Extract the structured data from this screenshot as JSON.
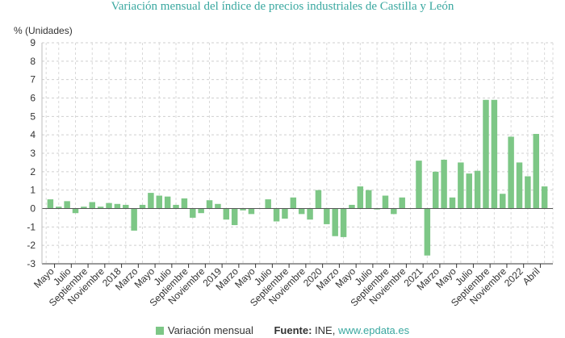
{
  "chart_data": {
    "type": "bar",
    "title": "Variación mensual del índice de precios industriales de Castilla y León",
    "ylabel": "% (Unidades)",
    "ylim": [
      -3,
      9
    ],
    "yticks": [
      -3,
      -2,
      -1,
      0,
      1,
      2,
      3,
      4,
      5,
      6,
      7,
      8,
      9
    ],
    "grid": true,
    "color": "#7dc786",
    "x_tick_labels": [
      "Mayo",
      "Julio",
      "Septiembre",
      "Noviembre",
      "2018",
      "Marzo",
      "Mayo",
      "Julio",
      "Septiembre",
      "Noviembre",
      "2019",
      "Marzo",
      "Mayo",
      "Julio",
      "Septiembre",
      "Noviembre",
      "2020",
      "Marzo",
      "Mayo",
      "Julio",
      "Septiembre",
      "Noviembre",
      "2021",
      "Marzo",
      "Mayo",
      "Julio",
      "Septiembre",
      "Noviembre",
      "2022",
      "Abril"
    ],
    "series": [
      {
        "name": "Variación mensual",
        "values": [
          0.5,
          0.1,
          0.4,
          -0.25,
          0.1,
          0.35,
          0.1,
          0.3,
          0.25,
          0.2,
          -1.2,
          0.2,
          0.85,
          0.7,
          0.65,
          0.2,
          0.55,
          -0.5,
          -0.25,
          0.45,
          0.25,
          -0.6,
          -0.9,
          -0.1,
          -0.3,
          0.0,
          0.5,
          -0.7,
          -0.55,
          0.6,
          -0.3,
          -0.6,
          1.0,
          -0.85,
          -1.5,
          -1.55,
          0.2,
          1.2,
          1.0,
          -0.05,
          0.7,
          -0.3,
          0.6,
          0.0,
          2.6,
          -2.55,
          2.0,
          2.65,
          0.6,
          2.5,
          1.9,
          2.05,
          5.9,
          5.9,
          0.8,
          3.9,
          2.5,
          1.75,
          4.05,
          1.2
        ]
      }
    ]
  },
  "legend": {
    "series_label": "Variación mensual",
    "source_label": "Fuente:",
    "source_text": "INE,",
    "source_link": "www.epdata.es"
  }
}
